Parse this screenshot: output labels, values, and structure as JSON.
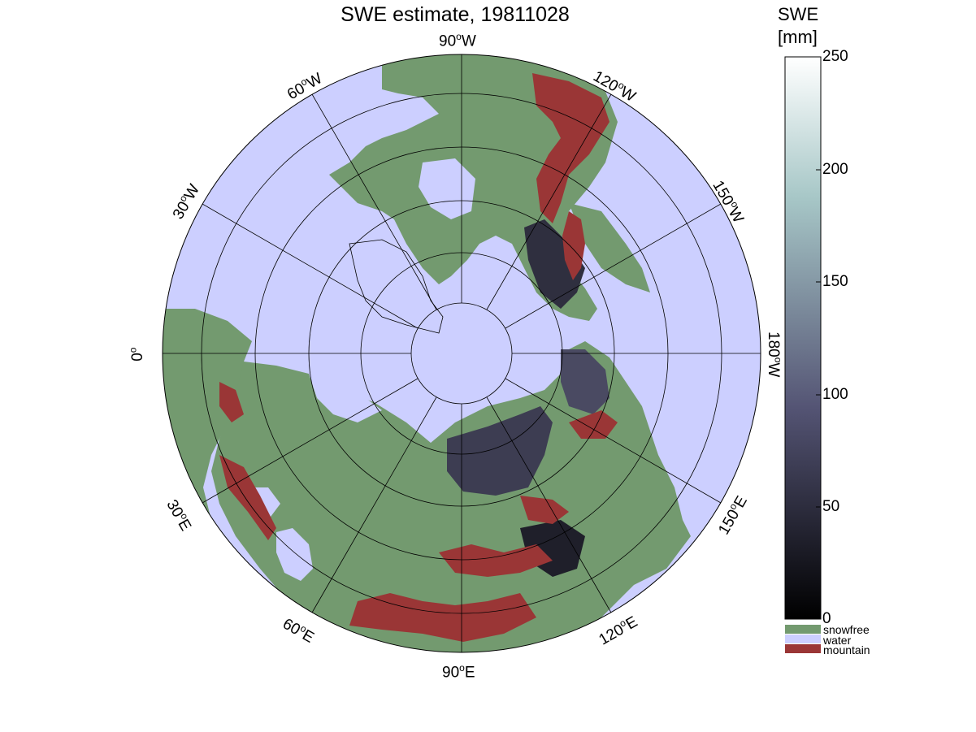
{
  "title": "SWE estimate, 19811028",
  "map": {
    "projection": "north-polar-stereographic",
    "lon_labels": [
      {
        "lon": "90",
        "hemi": "W"
      },
      {
        "lon": "120",
        "hemi": "W"
      },
      {
        "lon": "150",
        "hemi": "W"
      },
      {
        "lon": "180",
        "hemi": "W"
      },
      {
        "lon": "150",
        "hemi": "E"
      },
      {
        "lon": "120",
        "hemi": "E"
      },
      {
        "lon": "90",
        "hemi": "E"
      },
      {
        "lon": "60",
        "hemi": "E"
      },
      {
        "lon": "30",
        "hemi": "E"
      },
      {
        "lon": "0",
        "hemi": ""
      },
      {
        "lon": "30",
        "hemi": "W"
      },
      {
        "lon": "60",
        "hemi": "W"
      }
    ],
    "colors": {
      "water": "#cccfff",
      "snowfree": "#739a6f",
      "mountain": "#9a3636",
      "snow_shallow": "#2b2b3a",
      "snow_deep": "#5f6079"
    }
  },
  "colorbar": {
    "title_line1": "SWE",
    "title_line2": "[mm]",
    "ticks": [
      "0",
      "50",
      "100",
      "150",
      "200",
      "250"
    ],
    "range": [
      0,
      250
    ],
    "colormap": "bone",
    "legend": [
      {
        "label": "snowfree",
        "color": "#739a6f"
      },
      {
        "label": "water",
        "color": "#cccfff"
      },
      {
        "label": "mountain",
        "color": "#9a3636"
      }
    ]
  }
}
